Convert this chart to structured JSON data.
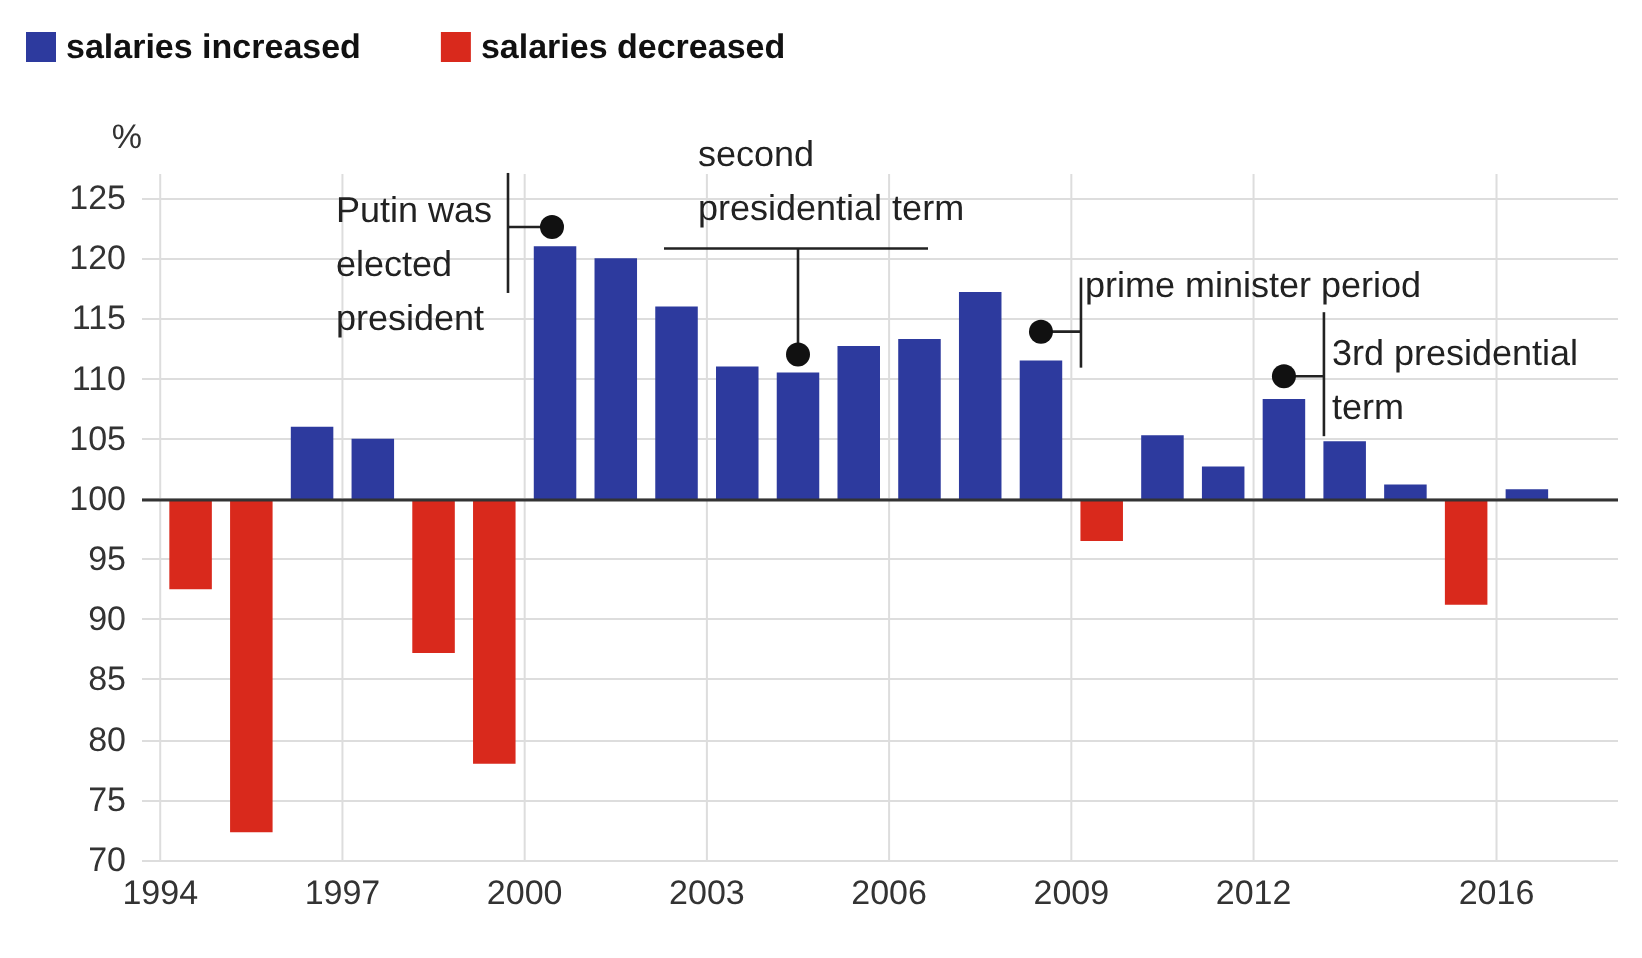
{
  "chart_data": {
    "type": "bar",
    "ylabel": "%",
    "x": [
      1994,
      1995,
      1996,
      1997,
      1998,
      1999,
      2000,
      2001,
      2002,
      2003,
      2004,
      2005,
      2006,
      2007,
      2008,
      2009,
      2010,
      2011,
      2012,
      2013,
      2014,
      2015,
      2016
    ],
    "series": [
      {
        "name": "salaries increased",
        "color": "#2d3a9e",
        "base": [
          null,
          null,
          100,
          100,
          null,
          null,
          100,
          100,
          100,
          100,
          100,
          100,
          100,
          100,
          100,
          null,
          100,
          100,
          100,
          100,
          100,
          null,
          100
        ],
        "values": [
          null,
          null,
          6,
          5,
          null,
          null,
          21,
          20,
          16,
          11,
          10.5,
          12.7,
          13.3,
          17.2,
          11.5,
          null,
          5.3,
          2.7,
          8.3,
          4.8,
          1.2,
          null,
          0.8
        ]
      },
      {
        "name": "salaries decreased",
        "color": "#d9291c",
        "base": [
          100,
          100,
          null,
          null,
          100,
          100,
          null,
          null,
          null,
          null,
          null,
          null,
          null,
          null,
          null,
          100,
          null,
          null,
          null,
          null,
          null,
          100,
          null
        ],
        "values": [
          -7.5,
          -27.7,
          null,
          null,
          -12.8,
          -22,
          null,
          null,
          null,
          null,
          null,
          null,
          null,
          null,
          null,
          -3.5,
          null,
          null,
          null,
          null,
          null,
          -8.8,
          null
        ]
      }
    ],
    "xlim": [
      1993.7,
      2018
    ],
    "xticks": [
      1994,
      1997,
      2000,
      2003,
      2006,
      2009,
      2012,
      2016
    ],
    "ylim": [
      70,
      127
    ],
    "yticks": [
      70,
      75,
      80,
      85,
      90,
      95,
      100,
      105,
      110,
      115,
      120,
      125
    ],
    "ref_lines": [
      {
        "axis": "y",
        "value": 100,
        "color": "#333333"
      }
    ],
    "annotations": [
      {
        "text": "Putin was\nelected\npresident",
        "x": 2000.45,
        "y": 122.6
      },
      {
        "text": "second\npresidential term",
        "x": 2004.5,
        "y": 112
      },
      {
        "text": "prime minister period",
        "x": 2008.5,
        "y": 113.9
      },
      {
        "text": "3rd presidential\nterm",
        "x": 2012.5,
        "y": 110.2
      }
    ],
    "grid": true,
    "legend": "top left"
  }
}
